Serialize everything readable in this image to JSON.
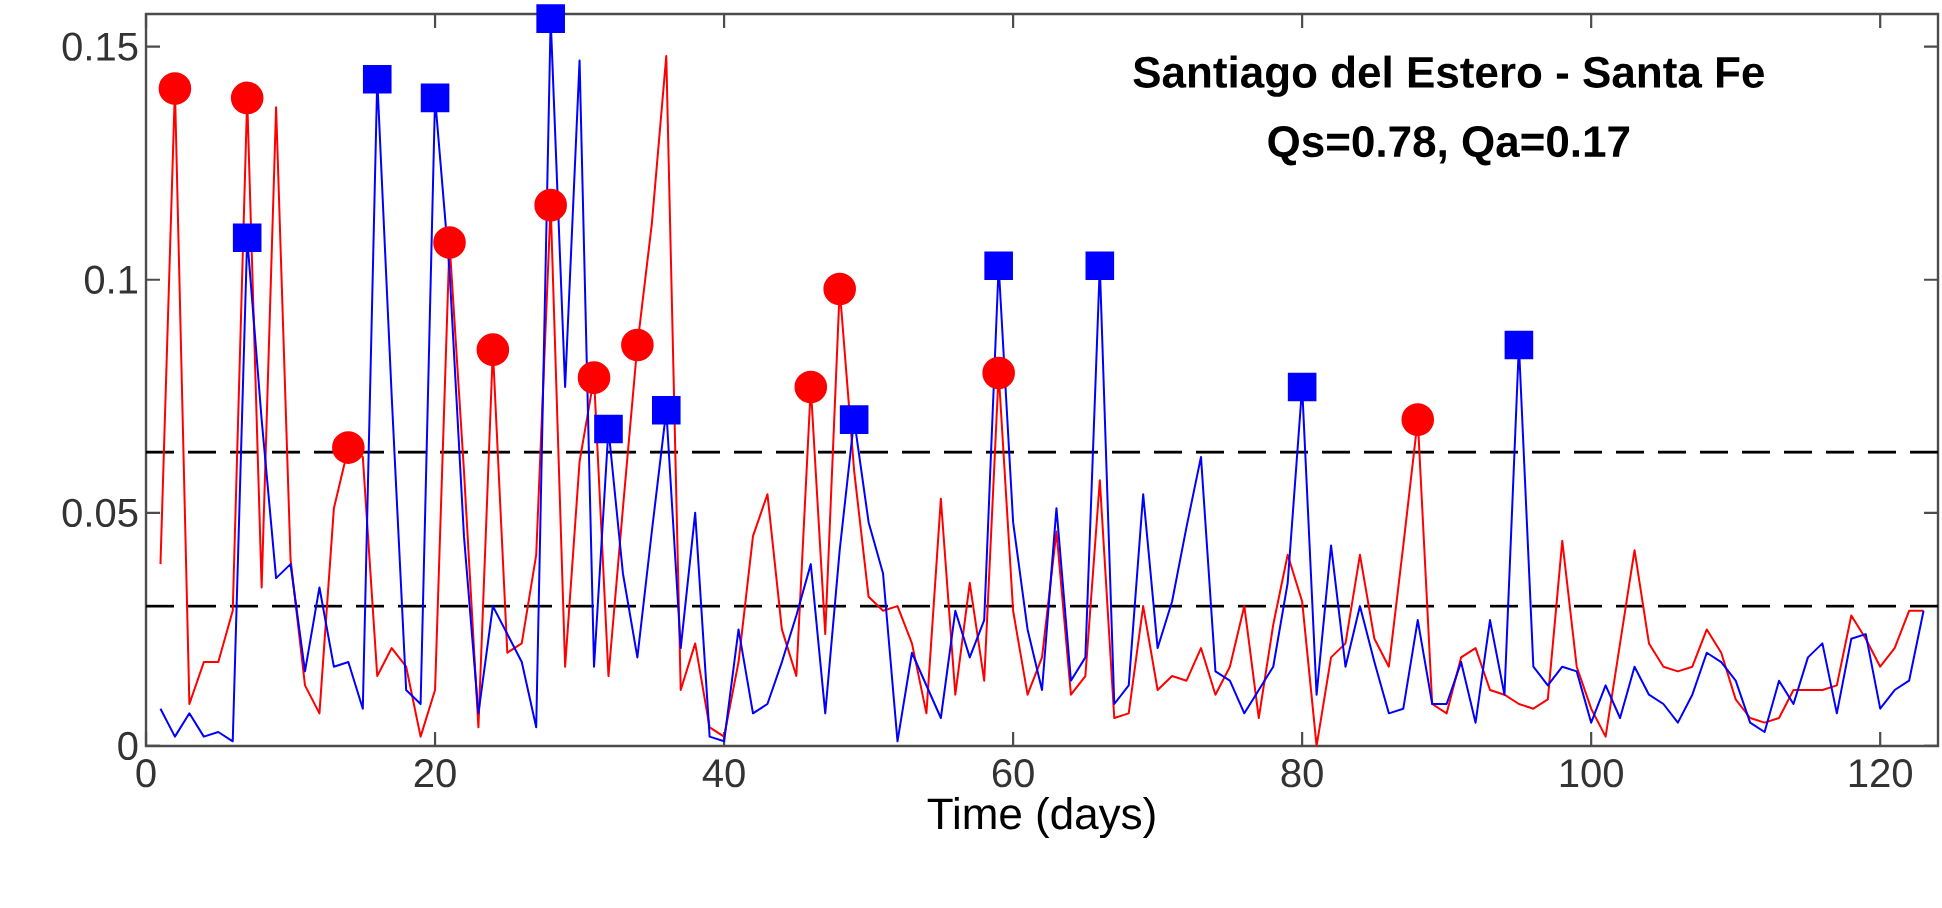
{
  "chart_data": {
    "type": "line",
    "title": "Santiago del Estero - Santa Fe",
    "subtitle": "Qs=0.78, Qa=0.17",
    "xlabel": "Time (days)",
    "xlim": [
      0,
      124
    ],
    "ylim": [
      0,
      0.157
    ],
    "xticks": [
      0,
      20,
      40,
      60,
      80,
      100,
      120
    ],
    "yticks": [
      0,
      0.05,
      0.1,
      0.15
    ],
    "grid": false,
    "x": [
      1,
      2,
      3,
      4,
      5,
      6,
      7,
      8,
      9,
      10,
      11,
      12,
      13,
      14,
      15,
      16,
      17,
      18,
      19,
      20,
      21,
      22,
      23,
      24,
      25,
      26,
      27,
      28,
      29,
      30,
      31,
      32,
      33,
      34,
      35,
      36,
      37,
      38,
      39,
      40,
      41,
      42,
      43,
      44,
      45,
      46,
      47,
      48,
      49,
      50,
      51,
      52,
      53,
      54,
      55,
      56,
      57,
      58,
      59,
      60,
      61,
      62,
      63,
      64,
      65,
      66,
      67,
      68,
      69,
      70,
      71,
      72,
      73,
      74,
      75,
      76,
      77,
      78,
      79,
      80,
      81,
      82,
      83,
      84,
      85,
      86,
      87,
      88,
      89,
      90,
      91,
      92,
      93,
      94,
      95,
      96,
      97,
      98,
      99,
      100,
      101,
      102,
      103,
      104,
      105,
      106,
      107,
      108,
      109,
      110,
      111,
      112,
      113,
      114,
      115,
      116,
      117,
      118,
      119,
      120,
      121,
      122,
      123
    ],
    "ref_lines": [
      {
        "axis": "y",
        "value": 0.063,
        "color": "#000000",
        "line_style": "dashed"
      },
      {
        "axis": "y",
        "value": 0.03,
        "color": "#000000",
        "line_style": "dashed"
      }
    ],
    "series": [
      {
        "color": "#ff0000",
        "marker": "none",
        "values": [
          0.039,
          0.141,
          0.009,
          0.018,
          0.018,
          0.029,
          0.139,
          0.034,
          0.137,
          0.04,
          0.013,
          0.007,
          0.051,
          0.064,
          0.062,
          0.015,
          0.021,
          0.017,
          0.002,
          0.012,
          0.108,
          0.059,
          0.004,
          0.085,
          0.02,
          0.022,
          0.041,
          0.116,
          0.017,
          0.061,
          0.079,
          0.015,
          0.051,
          0.086,
          0.112,
          0.148,
          0.012,
          0.022,
          0.004,
          0.002,
          0.018,
          0.045,
          0.054,
          0.025,
          0.015,
          0.077,
          0.024,
          0.098,
          0.059,
          0.032,
          0.029,
          0.03,
          0.022,
          0.007,
          0.053,
          0.011,
          0.035,
          0.014,
          0.08,
          0.029,
          0.011,
          0.019,
          0.046,
          0.011,
          0.015,
          0.057,
          0.006,
          0.007,
          0.03,
          0.012,
          0.015,
          0.014,
          0.021,
          0.011,
          0.017,
          0.03,
          0.006,
          0.026,
          0.041,
          0.031,
          0,
          0.019,
          0.022,
          0.041,
          0.023,
          0.017,
          0.043,
          0.07,
          0.009,
          0.007,
          0.019,
          0.021,
          0.012,
          0.011,
          0.009,
          0.008,
          0.01,
          0.044,
          0.017,
          0.008,
          0.002,
          0.022,
          0.042,
          0.022,
          0.017,
          0.016,
          0.017,
          0.025,
          0.02,
          0.01,
          0.006,
          0.005,
          0.006,
          0.012,
          0.012,
          0.012,
          0.013,
          0.028,
          0.023,
          0.017,
          0.021,
          0.029,
          0.029
        ]
      },
      {
        "color": "#0000ff",
        "marker": "none",
        "values": [
          0.008,
          0.002,
          0.007,
          0.002,
          0.003,
          0.001,
          0.109,
          0.07,
          0.036,
          0.039,
          0.016,
          0.034,
          0.017,
          0.018,
          0.008,
          0.143,
          0.075,
          0.012,
          0.009,
          0.139,
          0.102,
          0.045,
          0.007,
          0.03,
          0.024,
          0.018,
          0.004,
          0.156,
          0.077,
          0.147,
          0.017,
          0.068,
          0.037,
          0.019,
          0.046,
          0.072,
          0.021,
          0.05,
          0.002,
          0.001,
          0.025,
          0.007,
          0.009,
          0.018,
          0.028,
          0.039,
          0.007,
          0.042,
          0.07,
          0.048,
          0.037,
          0.001,
          0.02,
          0.013,
          0.006,
          0.029,
          0.019,
          0.027,
          0.103,
          0.048,
          0.025,
          0.012,
          0.051,
          0.014,
          0.019,
          0.103,
          0.009,
          0.013,
          0.054,
          0.021,
          0.031,
          0.047,
          0.062,
          0.016,
          0.014,
          0.007,
          0.012,
          0.017,
          0.035,
          0.077,
          0.011,
          0.043,
          0.017,
          0.03,
          0.018,
          0.007,
          0.008,
          0.027,
          0.009,
          0.009,
          0.018,
          0.005,
          0.027,
          0.011,
          0.086,
          0.017,
          0.013,
          0.017,
          0.016,
          0.005,
          0.013,
          0.006,
          0.017,
          0.011,
          0.009,
          0.005,
          0.011,
          0.02,
          0.018,
          0.014,
          0.005,
          0.003,
          0.014,
          0.009,
          0.019,
          0.022,
          0.007,
          0.023,
          0.024,
          0.008,
          0.012,
          0.014,
          0.029
        ]
      },
      {
        "type": "scatter",
        "color": "#ff0000",
        "marker": "circle",
        "x": [
          7,
          14,
          28,
          31,
          34,
          46,
          59
        ],
        "values": [
          0.139,
          0.064,
          0.116,
          0.079,
          0.086,
          0.077,
          0.08
        ]
      },
      {
        "type": "scatter",
        "color": "#ff0000",
        "marker": "circle",
        "x": [
          2,
          21,
          24,
          48,
          88
        ],
        "values": [
          0.141,
          0.108,
          0.085,
          0.098,
          0.07
        ]
      },
      {
        "type": "scatter",
        "color": "#0000ff",
        "marker": "square",
        "x": [
          7,
          16,
          28,
          32,
          36,
          49,
          59
        ],
        "values": [
          0.109,
          0.143,
          0.156,
          0.068,
          0.072,
          0.07,
          0.103
        ]
      },
      {
        "type": "scatter",
        "color": "#0000ff",
        "marker": "square",
        "x": [
          20,
          66,
          80,
          95
        ],
        "values": [
          0.139,
          0.103,
          0.077,
          0.086
        ]
      }
    ]
  }
}
